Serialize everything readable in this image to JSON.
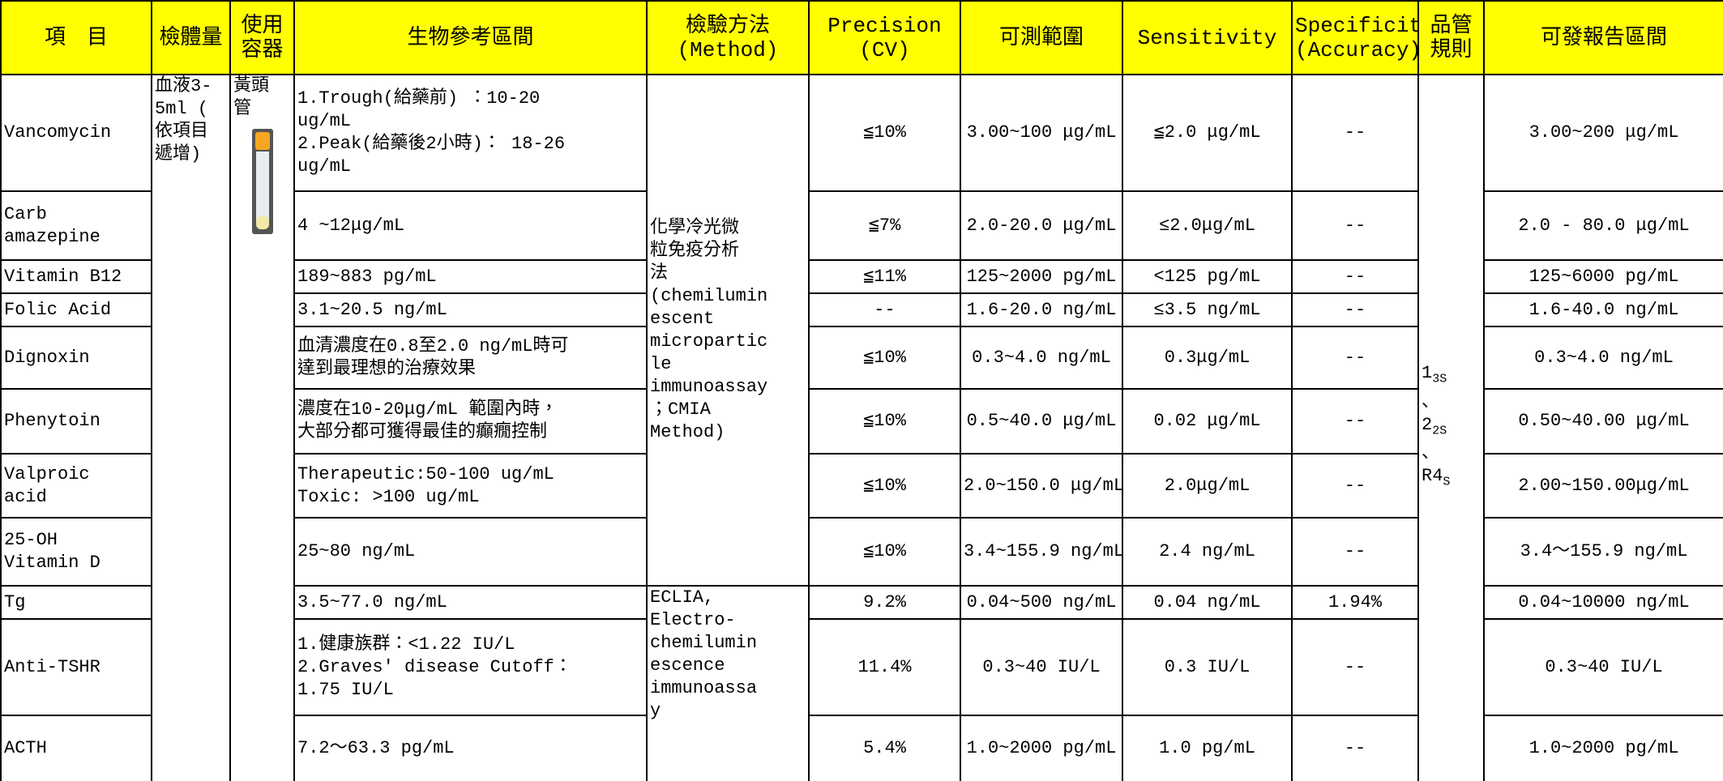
{
  "header": [
    [
      "項　目"
    ],
    [
      "檢體量"
    ],
    [
      "使用",
      "容器"
    ],
    [
      "生物參考區間"
    ],
    [
      "檢驗方法",
      "(Method)"
    ],
    [
      "Precision",
      "(CV)"
    ],
    [
      "可測範圍"
    ],
    [
      "Sensitivity"
    ],
    [
      "Specificity",
      "(Accuracy)"
    ],
    [
      "品管",
      "規則"
    ],
    [
      "可發報告區間"
    ]
  ],
  "specimen": [
    "血液3-",
    "5ml (",
    "依項目",
    "遞增)"
  ],
  "container": [
    "黃頭",
    "管"
  ],
  "methods": [
    [
      "化學冷光微",
      "粒免疫分析",
      "法",
      "(chemilumin",
      "escent",
      "micropartic",
      "le",
      "immunoassay",
      "；CMIA",
      "Method)"
    ],
    [
      "ECLIA,",
      "Electro-",
      "chemilumin",
      "escence",
      "immunoassa",
      "y"
    ]
  ],
  "qc_rule": {
    "items": [
      {
        "base": "1",
        "sub": "3S"
      },
      {
        "base": "2",
        "sub": "2S"
      },
      {
        "base": "R4",
        "sub": "S"
      }
    ],
    "separator": "、"
  },
  "rows": [
    {
      "item": "Vancomycin",
      "reference": [
        "1.Trough(給藥前) ：10-20",
        "ug/mL",
        "2.Peak(給藥後2小時)： 18-26",
        "ug/mL"
      ],
      "precision": "≦10%",
      "range": "3.00~100 μg/mL",
      "sensitivity": "≦2.0 μg/mL",
      "specificity": "--",
      "report": "3.00~200 μg/mL"
    },
    {
      "item": [
        "Carb",
        "amazepine"
      ],
      "reference": "4 ~12μg/mL",
      "precision": "≦7%",
      "range": "2.0-20.0 μg/mL",
      "sensitivity": "≤2.0μg/mL",
      "specificity": "--",
      "report": "2.0 - 80.0 μg/mL"
    },
    {
      "item": "Vitamin B12",
      "reference": "189~883 pg/mL",
      "precision": "≦11%",
      "range": "125~2000 pg/mL",
      "sensitivity": "<125 pg/mL",
      "specificity": "--",
      "report": "125~6000 pg/mL"
    },
    {
      "item": "Folic Acid",
      "reference": "3.1~20.5 ng/mL",
      "precision": "--",
      "range": "1.6-20.0 ng/mL",
      "sensitivity": "≤3.5 ng/mL",
      "specificity": "--",
      "report": "1.6-40.0 ng/mL"
    },
    {
      "item": "Dignoxin",
      "reference": [
        "血清濃度在0.8至2.0 ng/mL時可",
        "達到最理想的治療效果"
      ],
      "precision": "≦10%",
      "range": "0.3~4.0 ng/mL",
      "sensitivity": "0.3μg/mL",
      "specificity": "--",
      "report": "0.3~4.0 ng/mL"
    },
    {
      "item": "Phenytoin",
      "reference": [
        "濃度在10-20μg/mL 範圍內時，",
        "大部分都可獲得最佳的癲癇控制"
      ],
      "precision": "≦10%",
      "range": "0.5~40.0 μg/mL",
      "sensitivity": "0.02 μg/mL",
      "specificity": "--",
      "report": "0.50~40.00 μg/mL"
    },
    {
      "item": [
        "Valproic",
        "acid"
      ],
      "reference": [
        "Therapeutic:50-100 ug/mL",
        "Toxic: >100 ug/mL"
      ],
      "precision": "≦10%",
      "range": "2.0~150.0 μg/mL",
      "sensitivity": "2.0μg/mL",
      "specificity": "--",
      "report": "2.00~150.00μg/mL"
    },
    {
      "item": [
        "25-OH",
        "Vitamin D"
      ],
      "reference": "25~80 ng/mL",
      "precision": "≦10%",
      "range": "3.4~155.9 ng/mL",
      "sensitivity": "2.4 ng/mL",
      "specificity": "--",
      "report": "3.4～155.9 ng/mL"
    },
    {
      "item": "Tg",
      "reference": "3.5~77.0 ng/mL",
      "precision": "9.2%",
      "range": "0.04~500 ng/mL",
      "sensitivity": "0.04 ng/mL",
      "specificity": "1.94%",
      "report": "0.04~10000 ng/mL"
    },
    {
      "item": "Anti-TSHR",
      "reference": [
        "1.健康族群：<1.22 IU/L",
        "2.Graves' disease Cutoff：",
        "1.75 IU/L"
      ],
      "precision": "11.4%",
      "range": "0.3~40 IU/L",
      "sensitivity": "0.3 IU/L",
      "specificity": "--",
      "report": "0.3~40 IU/L"
    },
    {
      "item": "ACTH",
      "reference": "7.2～63.3 pg/mL",
      "precision": "5.4%",
      "range": "1.0~2000 pg/mL",
      "sensitivity": "1.0 pg/mL",
      "specificity": "--",
      "report": "1.0~2000 pg/mL"
    }
  ]
}
